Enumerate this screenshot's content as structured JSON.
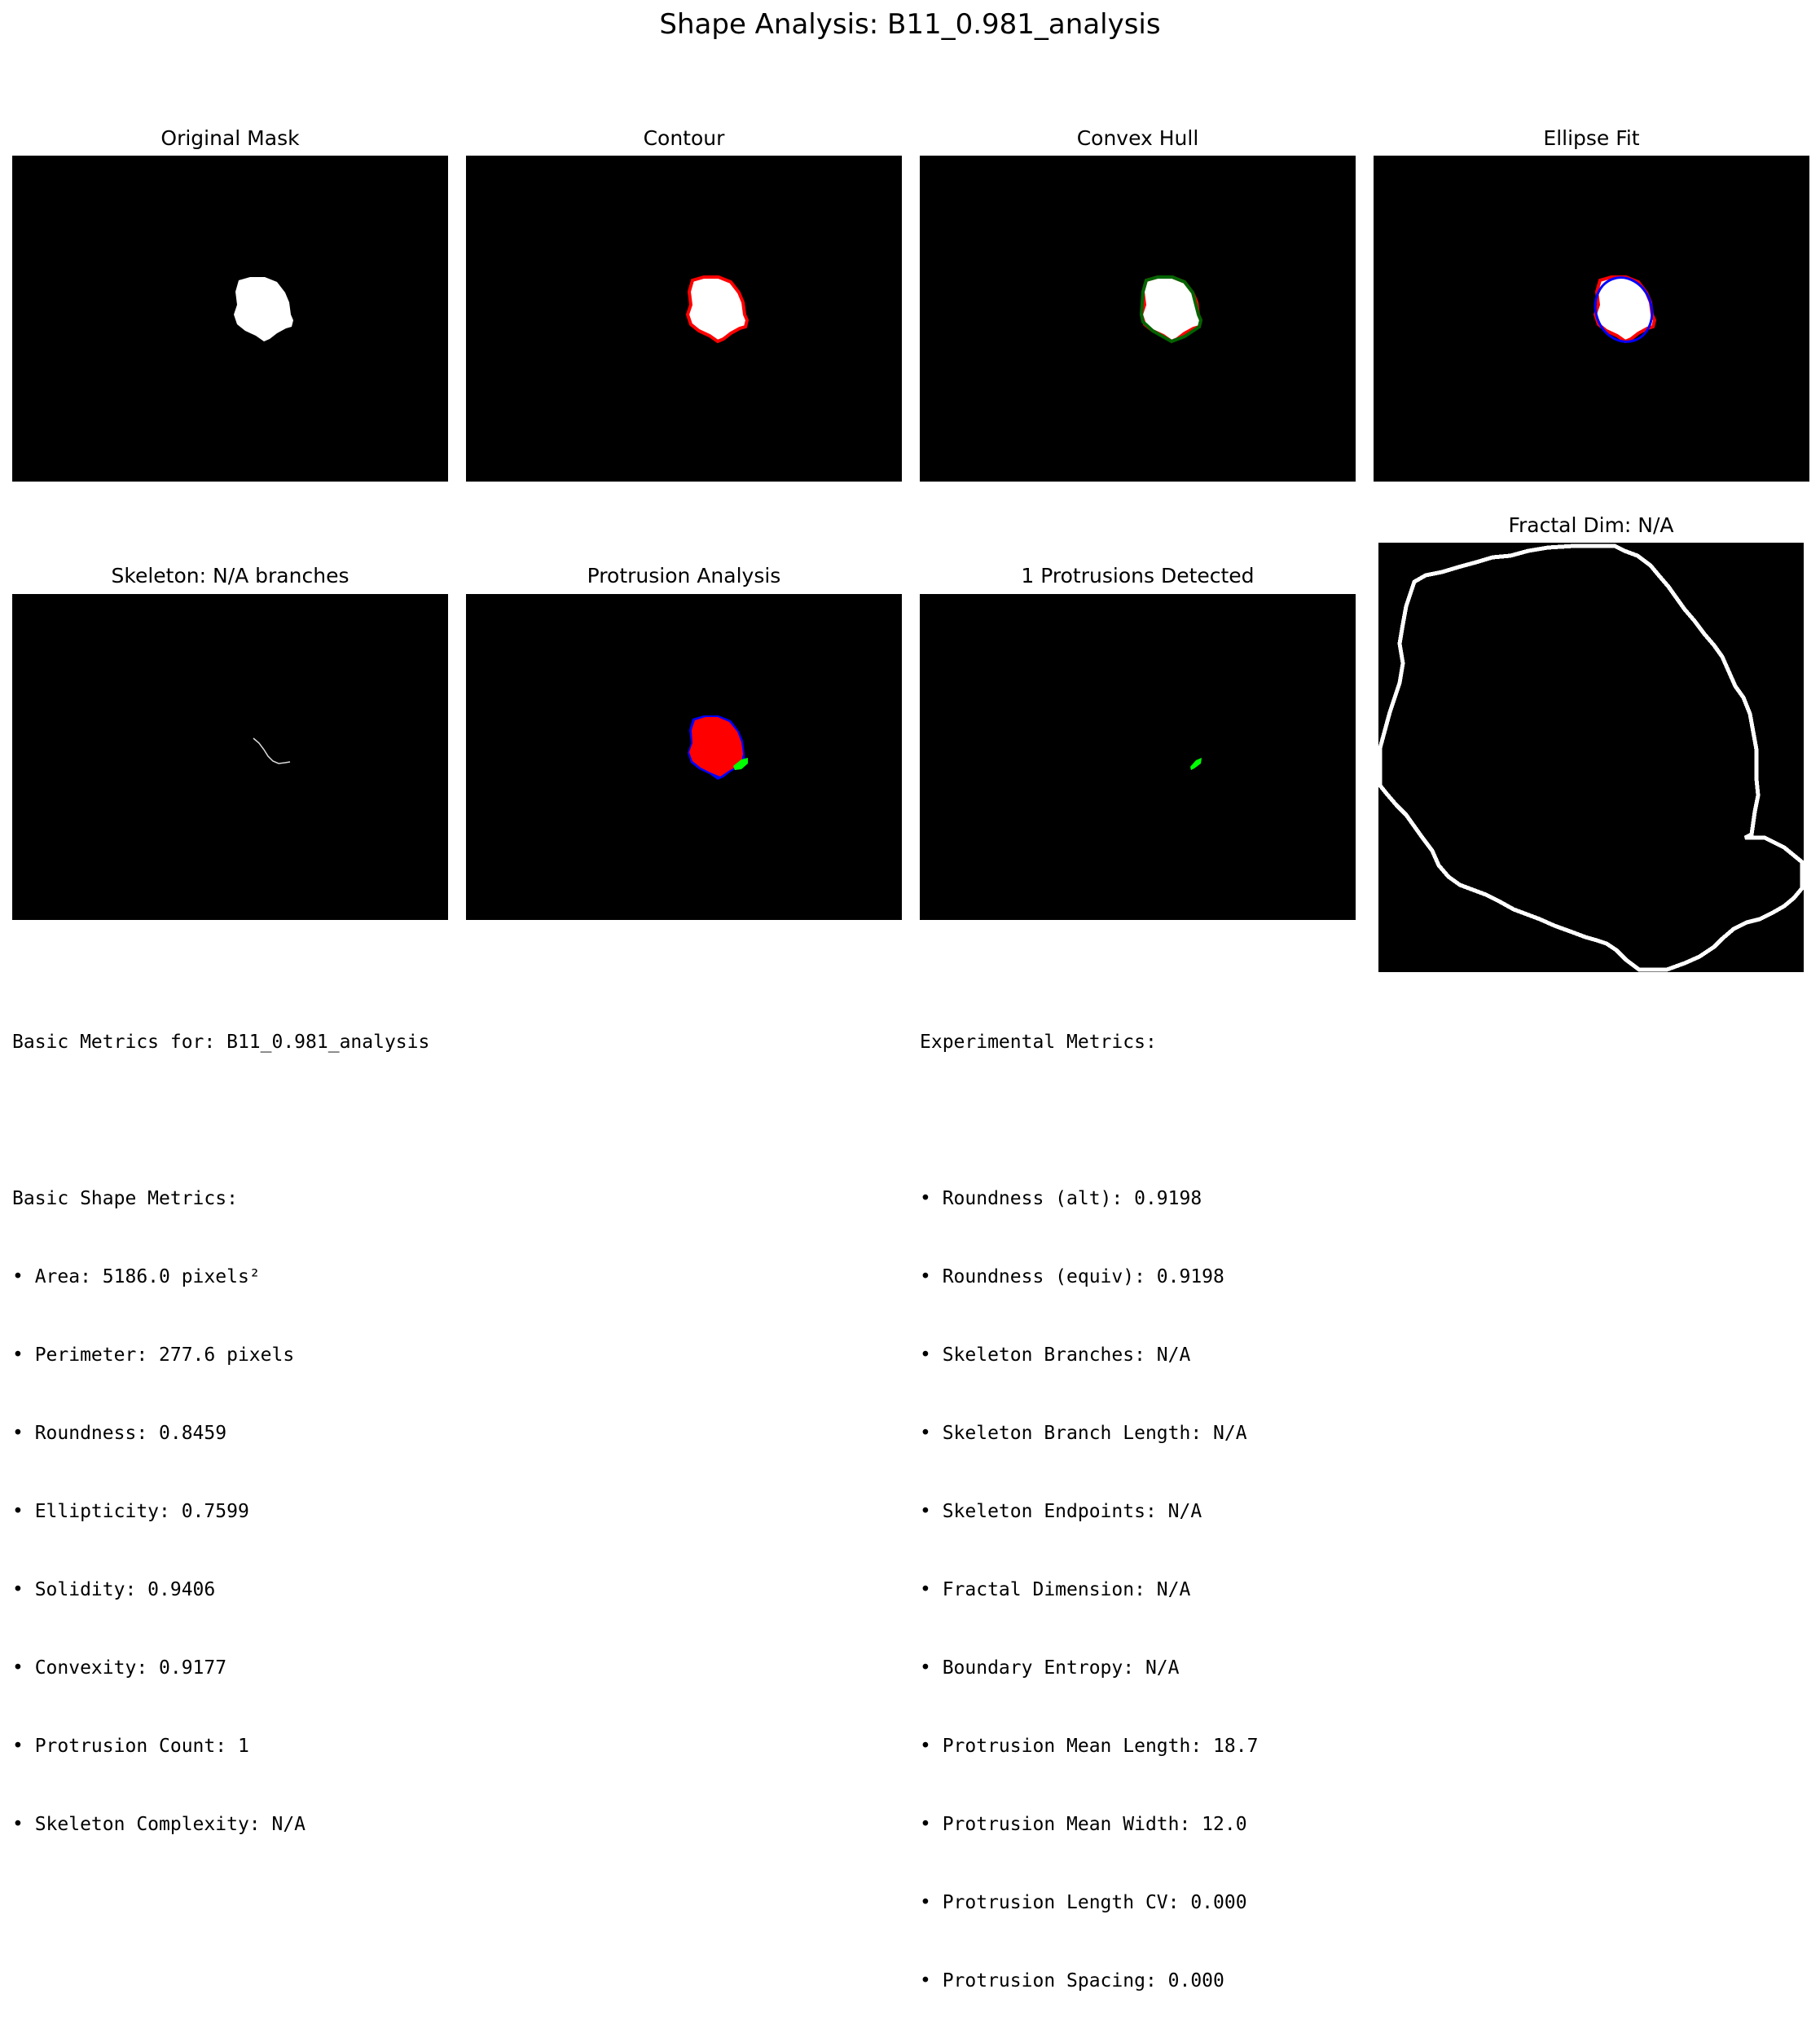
{
  "title": "Shape Analysis: B11_0.981_analysis",
  "panels": {
    "original_mask": "Original Mask",
    "contour": "Contour",
    "convex_hull": "Convex Hull",
    "ellipse_fit": "Ellipse Fit",
    "skeleton": "Skeleton: N/A branches",
    "protrusion_analysis": "Protrusion Analysis",
    "protrusions_detected": "1 Protrusions Detected",
    "fractal": "Fractal Dim: N/A"
  },
  "colors": {
    "contour": "#ff0000",
    "hull": "#006400",
    "ellipse": "#0000ff",
    "protrusion": "#00ff00",
    "mask": "#ffffff",
    "background": "#000000"
  },
  "basic_metrics": {
    "header": "Basic Metrics for: B11_0.981_analysis",
    "section": "Basic Shape Metrics:",
    "items": [
      "• Area: 5186.0 pixels²",
      "• Perimeter: 277.6 pixels",
      "• Roundness: 0.8459",
      "• Ellipticity: 0.7599",
      "• Solidity: 0.9406",
      "• Convexity: 0.9177",
      "• Protrusion Count: 1",
      "• Skeleton Complexity: N/A"
    ]
  },
  "experimental_metrics": {
    "header": "Experimental Metrics:",
    "items": [
      "• Roundness (alt): 0.9198",
      "• Roundness (equiv): 0.9198",
      "• Skeleton Branches: N/A",
      "• Skeleton Branch Length: N/A",
      "• Skeleton Endpoints: N/A",
      "• Fractal Dimension: N/A",
      "• Boundary Entropy: N/A",
      "• Protrusion Mean Length: 18.7",
      "• Protrusion Mean Width: 12.0",
      "• Protrusion Length CV: 0.000",
      "• Protrusion Spacing: 0.000"
    ]
  }
}
